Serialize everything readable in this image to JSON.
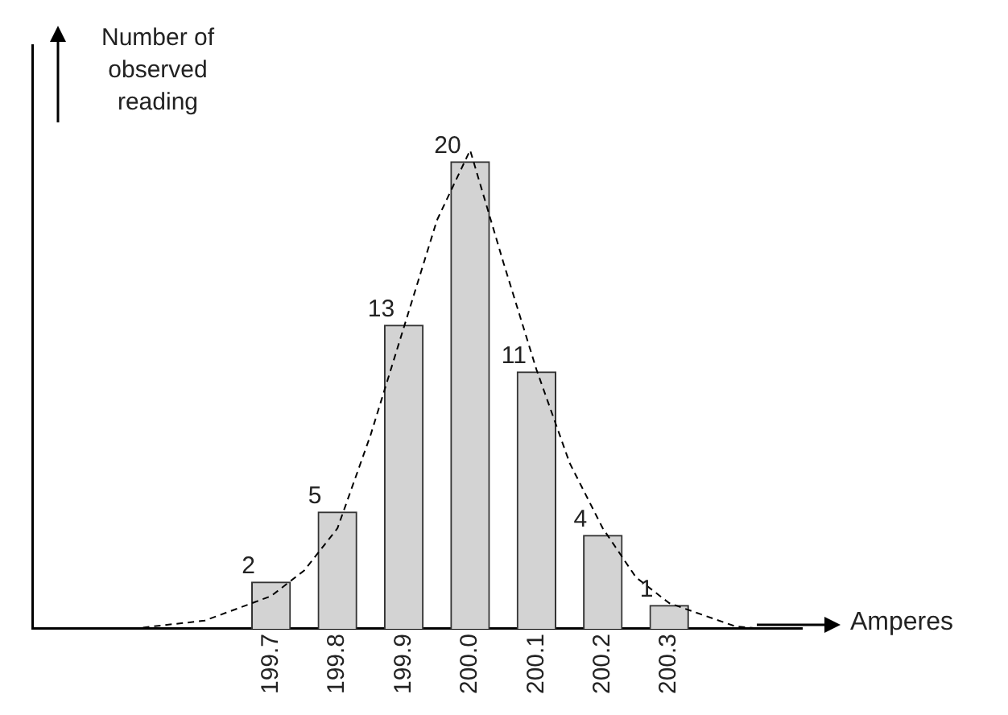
{
  "chart_data": {
    "type": "bar",
    "xlabel": "Amperes",
    "ylabel": "Number of observed reading",
    "xlim": [
      199.34,
      200.5
    ],
    "xticks": [
      199.7,
      199.8,
      199.9,
      {
        "value": 200,
        "label": "200.0"
      },
      200.1,
      200.2,
      200.3
    ],
    "tick_labels": "x",
    "grid": false,
    "legend": false,
    "series": [
      {
        "x": [
          199.7,
          199.8,
          199.9,
          200.0,
          200.1,
          200.2,
          200.3
        ],
        "values": [
          2,
          5,
          13,
          20,
          11,
          4,
          1
        ],
        "value_labels": [
          "2",
          "5",
          "13",
          "20",
          "11",
          "4",
          "1"
        ],
        "color": "#d3d3d3"
      },
      {
        "type": "line",
        "x": [
          199.49,
          199.6,
          199.7,
          199.75,
          199.8,
          199.85,
          199.9,
          199.95,
          200.0,
          200.05,
          200.1,
          200.15,
          200.2,
          200.25,
          200.3,
          200.4,
          200.44
        ],
        "values": [
          0,
          0.35,
          1.4,
          2.5,
          4.3,
          8.3,
          12.9,
          17.5,
          20.5,
          15.7,
          11.1,
          7.1,
          4.3,
          2.2,
          1.1,
          0.1,
          0
        ],
        "color": "#000000",
        "line_style": "dashed",
        "marker": "none"
      }
    ]
  }
}
